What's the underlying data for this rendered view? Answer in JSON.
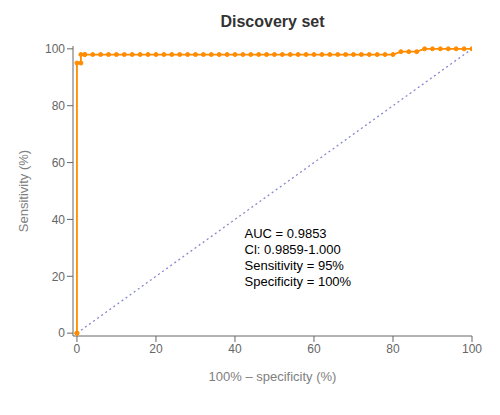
{
  "chart_data": {
    "type": "line",
    "title": "Discovery set",
    "xlabel": "100% – specificity (%)",
    "ylabel": "Sensitivity (%)",
    "xlim": [
      -1,
      100
    ],
    "ylim": [
      -1,
      101
    ],
    "xticks": [
      0,
      20,
      40,
      60,
      80,
      100
    ],
    "yticks": [
      0,
      20,
      40,
      60,
      80,
      100
    ],
    "grid": false,
    "annotation": "AUC = 0.9853\nCl: 0.9859-1.000\nSensitivity = 95%\nSpecificity = 100%",
    "series": [
      {
        "color": "#8888CC",
        "line_style": "dotted",
        "marker": "none",
        "x": [
          0,
          100
        ],
        "values": [
          0,
          100
        ]
      },
      {
        "color": "#FF8C00",
        "line_style": "solid",
        "marker": "circle",
        "x": [
          0,
          0,
          0,
          1,
          1,
          2,
          2,
          4,
          6,
          8,
          10,
          12,
          14,
          16,
          18,
          20,
          22,
          24,
          26,
          28,
          30,
          32,
          34,
          36,
          38,
          40,
          42,
          44,
          46,
          48,
          50,
          52,
          54,
          56,
          58,
          60,
          62,
          64,
          66,
          68,
          70,
          72,
          74,
          76,
          78,
          80,
          82,
          84,
          86,
          88,
          90,
          92,
          94,
          96,
          98,
          100
        ],
        "values": [
          0,
          0,
          95,
          95,
          98,
          98,
          98,
          98,
          98,
          98,
          98,
          98,
          98,
          98,
          98,
          98,
          98,
          98,
          98,
          98,
          98,
          98,
          98,
          98,
          98,
          98,
          98,
          98,
          98,
          98,
          98,
          98,
          98,
          98,
          98,
          98,
          98,
          98,
          98,
          98,
          98,
          98,
          98,
          98,
          98,
          98,
          99,
          99,
          99,
          100,
          100,
          100,
          100,
          100,
          100,
          100
        ]
      }
    ]
  }
}
